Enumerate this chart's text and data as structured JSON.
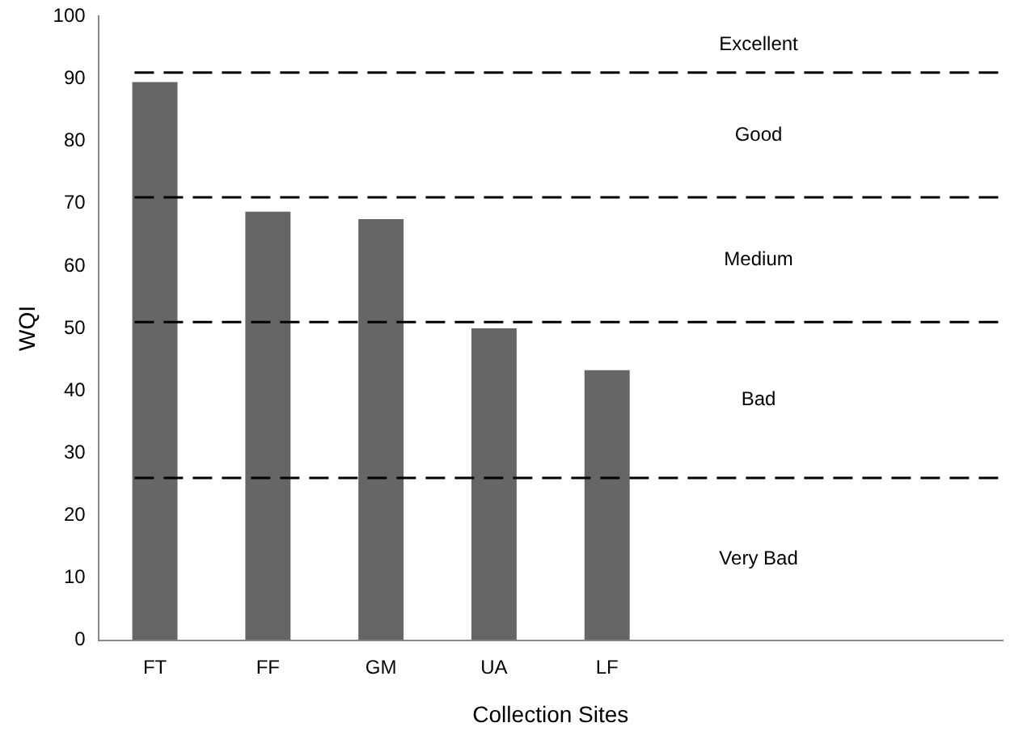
{
  "chart_data": {
    "type": "bar",
    "xlabel": "Collection Sites",
    "ylabel": "WQI",
    "categories": [
      "FT",
      "FF",
      "GM",
      "UA",
      "LF",
      null,
      null,
      null
    ],
    "values": [
      89.5,
      68.7,
      67.5,
      50,
      43.3,
      null,
      null,
      null
    ],
    "color": "#666666",
    "ylim": [
      0,
      100
    ],
    "yticks": [
      0,
      10,
      20,
      30,
      40,
      50,
      60,
      70,
      80,
      90,
      100
    ],
    "grid": false,
    "legend": false,
    "ref_lines": [
      {
        "axis": "y",
        "value": 91,
        "color": "#000000",
        "line_style": "dashed"
      },
      {
        "axis": "y",
        "value": 71,
        "color": "#000000",
        "line_style": "dashed"
      },
      {
        "axis": "y",
        "value": 51,
        "color": "#000000",
        "line_style": "dashed"
      },
      {
        "axis": "y",
        "value": 26,
        "color": "#000000",
        "line_style": "dashed"
      }
    ],
    "annotations": [
      "Excellent",
      "Good",
      "Medium",
      "Bad",
      "Very Bad"
    ]
  }
}
